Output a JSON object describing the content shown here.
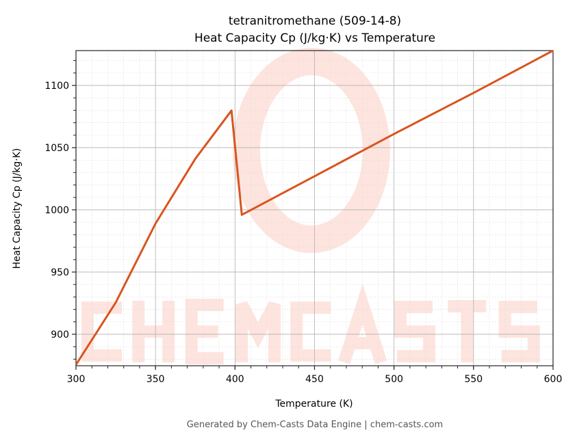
{
  "chart_data": {
    "type": "line",
    "title": "tetranitromethane (509-14-8)",
    "subtitle": "Heat Capacity Cp (J/kg·K) vs Temperature",
    "xlabel": "Temperature (K)",
    "ylabel": "Heat Capacity Cp (J/kg·K)",
    "xlim": [
      300,
      600
    ],
    "ylim": [
      874.7,
      1128
    ],
    "xticks": [
      300,
      350,
      400,
      450,
      500,
      550,
      600
    ],
    "yticks": [
      900,
      950,
      1000,
      1050,
      1100
    ],
    "grid": true,
    "series": [
      {
        "name": "Cp",
        "color": "#d9541e",
        "x": [
          300,
          325,
          350,
          375,
          397.8,
          404.3,
          450,
          500,
          550,
          600
        ],
        "y": [
          875.5,
          925.5,
          989,
          1041,
          1079.8,
          996,
          1027,
          1061,
          1094,
          1128
        ]
      }
    ]
  },
  "watermark": "CHEMCASTS",
  "footer": "Generated by Chem-Casts Data Engine | chem-casts.com"
}
